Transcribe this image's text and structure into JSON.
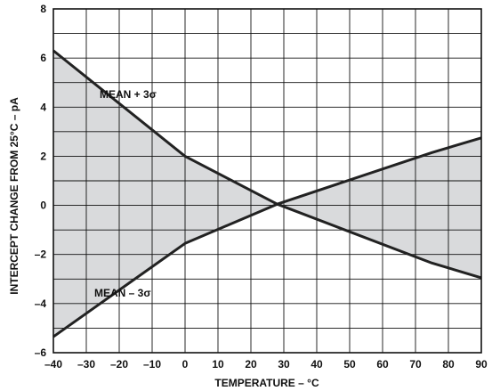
{
  "chart_data": {
    "type": "line",
    "xlabel": "TEMPERATURE – °C",
    "ylabel": "INTERCEPT CHANGE FROM 25°C – pA",
    "xlim": [
      -40,
      90
    ],
    "ylim": [
      -6,
      8
    ],
    "x_ticks": [
      -40,
      -30,
      -20,
      -10,
      0,
      10,
      20,
      30,
      40,
      50,
      60,
      70,
      80,
      90
    ],
    "x_tick_labels": [
      "–40",
      "–30",
      "–20",
      "–10",
      "0",
      "10",
      "20",
      "30",
      "40",
      "50",
      "60",
      "70",
      "80",
      "90"
    ],
    "y_ticks": [
      -6,
      -4,
      -2,
      0,
      2,
      4,
      6,
      8
    ],
    "y_tick_labels": [
      "–6",
      "–4",
      "–2",
      "0",
      "2",
      "4",
      "6",
      "8"
    ],
    "grid": true,
    "shaded_between_series": true,
    "series": [
      {
        "name": "MEAN + 3σ",
        "x": [
          -40,
          0,
          28,
          75,
          90
        ],
        "y": [
          6.3,
          2.0,
          0.05,
          -2.35,
          -2.95
        ]
      },
      {
        "name": "MEAN – 3σ",
        "x": [
          -40,
          0,
          28,
          75,
          90
        ],
        "y": [
          -5.35,
          -1.55,
          0.05,
          2.15,
          2.75
        ]
      }
    ],
    "colors": {
      "line": "#222222",
      "fill": "#d9dadc",
      "grid": "#111111",
      "frame": "#111111"
    }
  }
}
